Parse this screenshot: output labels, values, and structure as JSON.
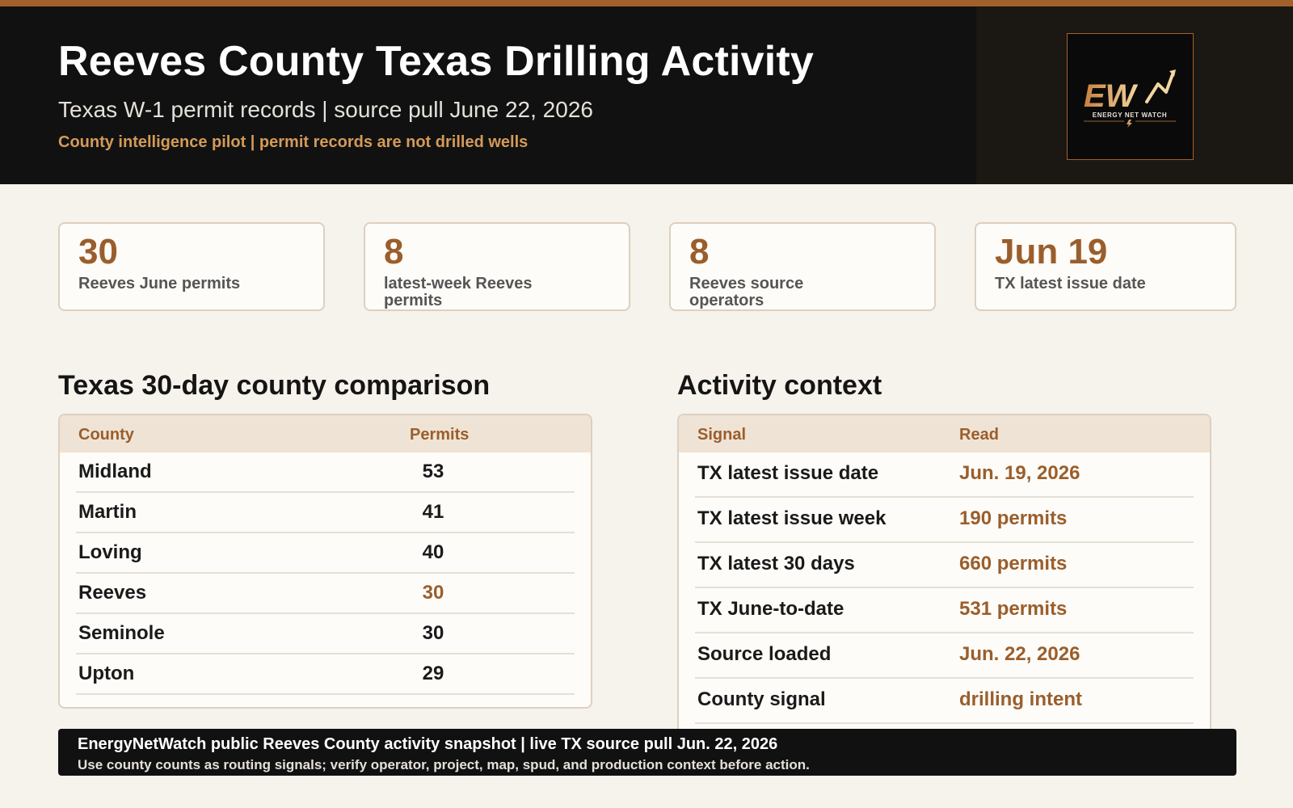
{
  "header": {
    "title": "Reeves County Texas Drilling Activity",
    "subtitle": "Texas W-1 permit records | source pull June 22, 2026",
    "note": "County intelligence pilot | permit records are not drilled wells",
    "logo": {
      "mark": "EW",
      "text": "ENERGY NET WATCH",
      "icon": "rising-arrow-icon"
    }
  },
  "stats": [
    {
      "value": "30",
      "label": "Reeves June permits"
    },
    {
      "value": "8",
      "label": "latest-week Reeves permits"
    },
    {
      "value": "8",
      "label": "Reeves source operators"
    },
    {
      "value": "Jun 19",
      "label": "TX latest issue date"
    }
  ],
  "comparison": {
    "title": "Texas 30-day county comparison",
    "columns": [
      "County",
      "Permits"
    ],
    "rows": [
      {
        "county": "Midland",
        "permits": "53"
      },
      {
        "county": "Martin",
        "permits": "41"
      },
      {
        "county": "Loving",
        "permits": "40"
      },
      {
        "county": "Reeves",
        "permits": "30",
        "highlight": true
      },
      {
        "county": "Seminole",
        "permits": "30"
      },
      {
        "county": "Upton",
        "permits": "29"
      }
    ]
  },
  "context": {
    "title": "Activity context",
    "columns": [
      "Signal",
      "Read"
    ],
    "rows": [
      {
        "signal": "TX latest issue date",
        "read": "Jun. 19, 2026"
      },
      {
        "signal": "TX latest issue week",
        "read": "190 permits"
      },
      {
        "signal": "TX latest 30 days",
        "read": "660 permits"
      },
      {
        "signal": "TX June-to-date",
        "read": "531 permits"
      },
      {
        "signal": "Source loaded",
        "read": "Jun. 22, 2026"
      },
      {
        "signal": "County signal",
        "read": "drilling intent"
      }
    ]
  },
  "footer": {
    "line1": "EnergyNetWatch public Reeves County activity snapshot | live TX source pull Jun. 22, 2026",
    "line2": "Use county counts as routing signals; verify operator, project, map, spud, and production context before action."
  },
  "colors": {
    "accent": "#9a5e2c",
    "header_bg": "#111111",
    "page_bg": "#f6f2ec",
    "note": "#d49a58"
  }
}
